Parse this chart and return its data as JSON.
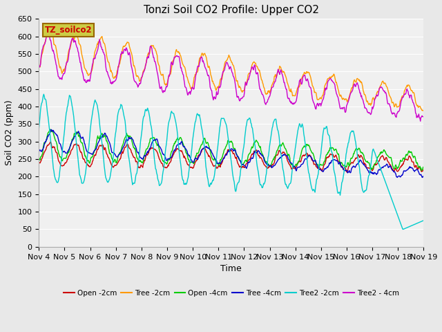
{
  "title": "Tonzi Soil CO2 Profile: Upper CO2",
  "xlabel": "Time",
  "ylabel": "Soil CO2 (ppm)",
  "ylim": [
    0,
    650
  ],
  "yticks": [
    0,
    50,
    100,
    150,
    200,
    250,
    300,
    350,
    400,
    450,
    500,
    550,
    600,
    650
  ],
  "xtick_labels": [
    "Nov 4",
    "Nov 5",
    "Nov 6",
    "Nov 7",
    "Nov 8",
    "Nov 9",
    "Nov 10",
    "Nov 11",
    "Nov 12",
    "Nov 13",
    "Nov 14",
    "Nov 15",
    "Nov 16",
    "Nov 17",
    "Nov 18",
    "Nov 19"
  ],
  "legend_label": "TZ_soilco2",
  "legend_box_facecolor": "#cccc44",
  "legend_box_edgecolor": "#996600",
  "legend_text_color": "#cc0000",
  "series": [
    {
      "name": "Open -2cm",
      "color": "#cc0000",
      "lw": 1.0
    },
    {
      "name": "Tree -2cm",
      "color": "#ff9900",
      "lw": 1.0
    },
    {
      "name": "Open -4cm",
      "color": "#00cc00",
      "lw": 1.0
    },
    {
      "name": "Tree -4cm",
      "color": "#0000cc",
      "lw": 1.0
    },
    {
      "name": "Tree2 -2cm",
      "color": "#00cccc",
      "lw": 1.0
    },
    {
      "name": "Tree2 - 4cm",
      "color": "#cc00cc",
      "lw": 1.0
    }
  ],
  "fig_facecolor": "#e8e8e8",
  "plot_facecolor": "#f0f0f0",
  "grid_color": "#ffffff",
  "title_fontsize": 11,
  "axis_label_fontsize": 9,
  "tick_fontsize": 8
}
